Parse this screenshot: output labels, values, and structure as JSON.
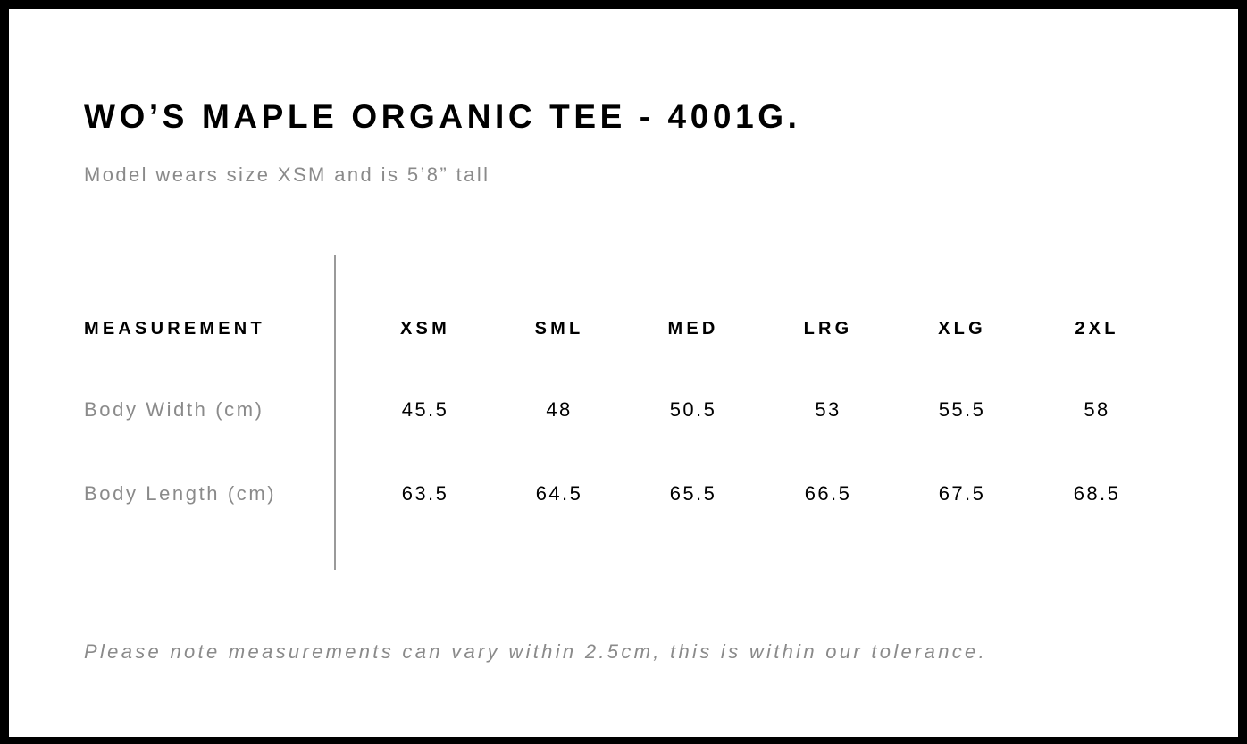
{
  "title": "WO’S MAPLE ORGANIC TEE - 4001G.",
  "subtitle": "Model wears size XSM and is 5’8” tall",
  "table": {
    "header_label": "MEASUREMENT",
    "sizes": [
      "XSM",
      "SML",
      "MED",
      "LRG",
      "XLG",
      "2XL"
    ],
    "rows": [
      {
        "label": "Body Width (cm)",
        "values": [
          "45.5",
          "48",
          "50.5",
          "53",
          "55.5",
          "58"
        ]
      },
      {
        "label": "Body Length (cm)",
        "values": [
          "63.5",
          "64.5",
          "65.5",
          "66.5",
          "67.5",
          "68.5"
        ]
      }
    ]
  },
  "note": "Please note measurements can vary within 2.5cm, this is within our tolerance.",
  "colors": {
    "border": "#000000",
    "muted_text": "#8a8a8a",
    "divider": "#9a9a9a"
  }
}
